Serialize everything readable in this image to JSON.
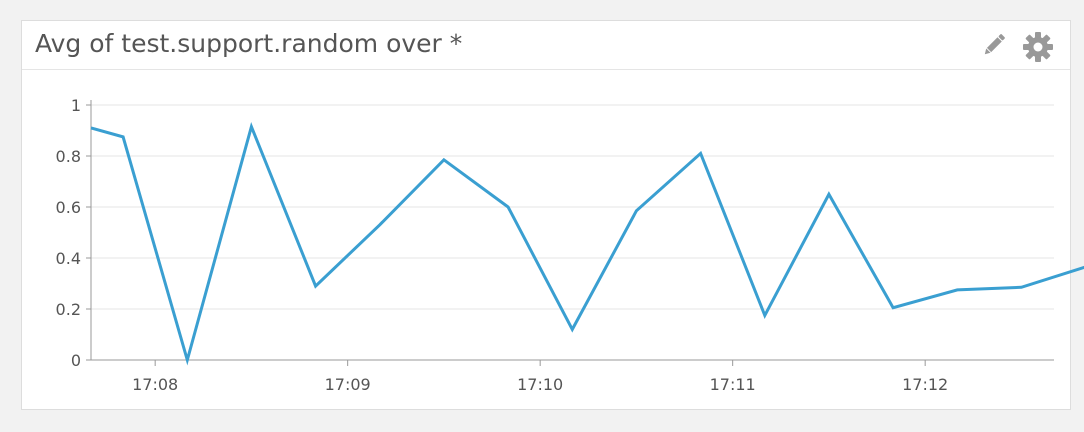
{
  "widget": {
    "title": "Avg of test.support.random over *",
    "icons": [
      "pencil-icon",
      "gear-icon"
    ]
  },
  "colors": {
    "line": "#3a9fd1",
    "grid": "#e5e5e5",
    "axis": "#999999",
    "text": "#555555",
    "icon": "#999999"
  },
  "chart_data": {
    "type": "line",
    "title": "Avg of test.support.random over *",
    "xlabel": "",
    "ylabel": "",
    "ylim": [
      0,
      1
    ],
    "y_ticks": [
      0,
      0.2,
      0.4,
      0.6,
      0.8,
      1
    ],
    "y_tick_labels": [
      "0",
      "0.2",
      "0.4",
      "0.6",
      "0.8",
      "1"
    ],
    "x_ticks": [
      "17:08",
      "17:09",
      "17:10",
      "17:11",
      "17:12"
    ],
    "grid": true,
    "legend": "none",
    "series": [
      {
        "x": [
          "17:07:40",
          "17:07:50",
          "17:08:10",
          "17:08:30",
          "17:08:50",
          "17:09:10",
          "17:09:30",
          "17:09:50",
          "17:10:10",
          "17:10:30",
          "17:10:50",
          "17:11:10",
          "17:11:30",
          "17:11:50",
          "17:12:10",
          "17:12:30",
          "17:12:50"
        ],
        "values": [
          0.91,
          0.875,
          0.0,
          0.915,
          0.29,
          0.53,
          0.785,
          0.6,
          0.12,
          0.585,
          0.81,
          0.175,
          0.65,
          0.205,
          0.275,
          0.285,
          0.365
        ]
      }
    ]
  }
}
